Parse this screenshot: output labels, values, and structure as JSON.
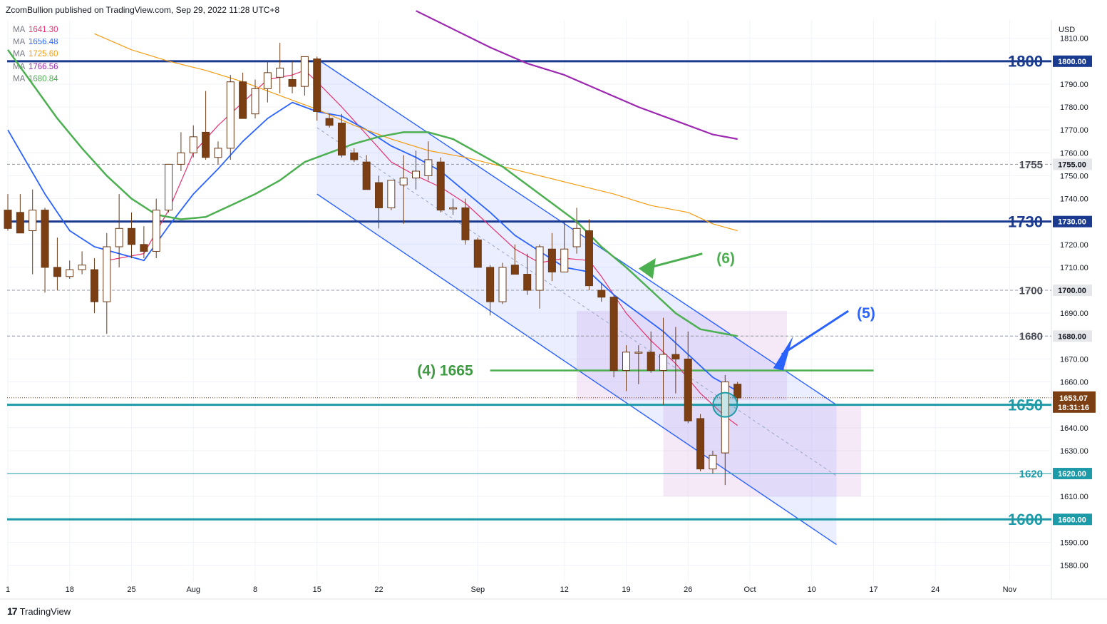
{
  "header": {
    "publisher": "ZcomBullion published on TradingView.com, Sep 29, 2022 11:28 UTC+8"
  },
  "footer": {
    "brand": "TradingView"
  },
  "colors": {
    "bull_body": "#ffffff",
    "bear_body": "#7b3f13",
    "wick": "#6b3a16",
    "ma1": "#e8316e",
    "ma2": "#2962ff",
    "ma3": "#f39c12",
    "ma4": "#9c27b0",
    "ma5": "#4caf50",
    "level_major": "#1a3a8f",
    "level_teal": "#1d9aa8",
    "channel": "#2962ff",
    "box": "#e1bee7"
  },
  "chart_data": {
    "type": "candlestick",
    "title": "",
    "currency_label": "USD",
    "ylim": [
      1573,
      1818
    ],
    "y_ticks": [
      "1580.00",
      "1590.00",
      "1600.00",
      "1610.00",
      "1620.00",
      "1630.00",
      "1640.00",
      "1650.00",
      "1660.00",
      "1670.00",
      "1680.00",
      "1690.00",
      "1700.00",
      "1710.00",
      "1720.00",
      "1730.00",
      "1740.00",
      "1750.00",
      "1760.00",
      "1770.00",
      "1780.00",
      "1790.00",
      "1800.00",
      "1810.00"
    ],
    "x_ticks": [
      {
        "label": "1",
        "t": 0
      },
      {
        "label": "18",
        "t": 5
      },
      {
        "label": "25",
        "t": 10
      },
      {
        "label": "Aug",
        "t": 15
      },
      {
        "label": "8",
        "t": 20
      },
      {
        "label": "15",
        "t": 25
      },
      {
        "label": "22",
        "t": 30
      },
      {
        "label": "Sep",
        "t": 38
      },
      {
        "label": "12",
        "t": 45
      },
      {
        "label": "19",
        "t": 50
      },
      {
        "label": "26",
        "t": 55
      },
      {
        "label": "Oct",
        "t": 60
      },
      {
        "label": "10",
        "t": 65
      },
      {
        "label": "17",
        "t": 70
      },
      {
        "label": "24",
        "t": 75
      },
      {
        "label": "Nov",
        "t": 81
      }
    ],
    "legend": [
      {
        "name": "MA",
        "value": "1641.30",
        "color": "#e8316e"
      },
      {
        "name": "MA",
        "value": "1656.48",
        "color": "#2962ff"
      },
      {
        "name": "MA",
        "value": "1725.60",
        "color": "#f39c12"
      },
      {
        "name": "MA",
        "value": "1766.56",
        "color": "#9c27b0"
      },
      {
        "name": "MA",
        "value": "1680.84",
        "color": "#4caf50"
      }
    ],
    "candles": [
      {
        "t": 0,
        "o": 1735,
        "h": 1742,
        "l": 1726,
        "c": 1727
      },
      {
        "t": 1,
        "o": 1734,
        "h": 1742,
        "l": 1725,
        "c": 1725
      },
      {
        "t": 2,
        "o": 1726,
        "h": 1744,
        "l": 1707,
        "c": 1735
      },
      {
        "t": 3,
        "o": 1735,
        "h": 1736,
        "l": 1699,
        "c": 1710
      },
      {
        "t": 4,
        "o": 1710,
        "h": 1723,
        "l": 1700,
        "c": 1706
      },
      {
        "t": 5,
        "o": 1706,
        "h": 1713,
        "l": 1705,
        "c": 1709
      },
      {
        "t": 6,
        "o": 1709,
        "h": 1717,
        "l": 1707,
        "c": 1711
      },
      {
        "t": 7,
        "o": 1709,
        "h": 1714,
        "l": 1690,
        "c": 1695
      },
      {
        "t": 8,
        "o": 1695,
        "h": 1725,
        "l": 1681,
        "c": 1719
      },
      {
        "t": 9,
        "o": 1719,
        "h": 1742,
        "l": 1710,
        "c": 1727
      },
      {
        "t": 10,
        "o": 1727,
        "h": 1734,
        "l": 1714,
        "c": 1720
      },
      {
        "t": 11,
        "o": 1720,
        "h": 1728,
        "l": 1714,
        "c": 1717
      },
      {
        "t": 12,
        "o": 1717,
        "h": 1740,
        "l": 1714,
        "c": 1735
      },
      {
        "t": 13,
        "o": 1735,
        "h": 1755,
        "l": 1734,
        "c": 1755
      },
      {
        "t": 14,
        "o": 1755,
        "h": 1769,
        "l": 1752,
        "c": 1760
      },
      {
        "t": 15,
        "o": 1760,
        "h": 1772,
        "l": 1758,
        "c": 1767
      },
      {
        "t": 16,
        "o": 1769,
        "h": 1787,
        "l": 1757,
        "c": 1758
      },
      {
        "t": 17,
        "o": 1758,
        "h": 1765,
        "l": 1755,
        "c": 1762
      },
      {
        "t": 18,
        "o": 1762,
        "h": 1794,
        "l": 1757,
        "c": 1791
      },
      {
        "t": 19,
        "o": 1791,
        "h": 1795,
        "l": 1775,
        "c": 1775
      },
      {
        "t": 20,
        "o": 1777,
        "h": 1792,
        "l": 1775,
        "c": 1788
      },
      {
        "t": 21,
        "o": 1788,
        "h": 1800,
        "l": 1782,
        "c": 1795
      },
      {
        "t": 22,
        "o": 1793,
        "h": 1808,
        "l": 1786,
        "c": 1797
      },
      {
        "t": 23,
        "o": 1792,
        "h": 1800,
        "l": 1786,
        "c": 1789
      },
      {
        "t": 24,
        "o": 1789,
        "h": 1802,
        "l": 1785,
        "c": 1802
      },
      {
        "t": 25,
        "o": 1801,
        "h": 1802,
        "l": 1774,
        "c": 1778
      },
      {
        "t": 26,
        "o": 1775,
        "h": 1777,
        "l": 1771,
        "c": 1772
      },
      {
        "t": 27,
        "o": 1773,
        "h": 1777,
        "l": 1758,
        "c": 1759
      },
      {
        "t": 28,
        "o": 1760,
        "h": 1762,
        "l": 1756,
        "c": 1757
      },
      {
        "t": 29,
        "o": 1756,
        "h": 1759,
        "l": 1744,
        "c": 1744
      },
      {
        "t": 30,
        "o": 1747,
        "h": 1750,
        "l": 1727,
        "c": 1736
      },
      {
        "t": 31,
        "o": 1736,
        "h": 1748,
        "l": 1735,
        "c": 1748
      },
      {
        "t": 32,
        "o": 1746,
        "h": 1759,
        "l": 1729,
        "c": 1749
      },
      {
        "t": 33,
        "o": 1749,
        "h": 1761,
        "l": 1744,
        "c": 1752
      },
      {
        "t": 34,
        "o": 1750,
        "h": 1765,
        "l": 1748,
        "c": 1757
      },
      {
        "t": 35,
        "o": 1756,
        "h": 1758,
        "l": 1734,
        "c": 1735
      },
      {
        "t": 36,
        "o": 1736,
        "h": 1740,
        "l": 1733,
        "c": 1736
      },
      {
        "t": 37,
        "o": 1736,
        "h": 1740,
        "l": 1720,
        "c": 1722
      },
      {
        "t": 38,
        "o": 1722,
        "h": 1723,
        "l": 1710,
        "c": 1710
      },
      {
        "t": 39,
        "o": 1710,
        "h": 1711,
        "l": 1689,
        "c": 1695
      },
      {
        "t": 40,
        "o": 1695,
        "h": 1712,
        "l": 1694,
        "c": 1710
      },
      {
        "t": 41,
        "o": 1711,
        "h": 1720,
        "l": 1707,
        "c": 1707
      },
      {
        "t": 42,
        "o": 1707,
        "h": 1716,
        "l": 1698,
        "c": 1700
      },
      {
        "t": 43,
        "o": 1700,
        "h": 1720,
        "l": 1692,
        "c": 1719
      },
      {
        "t": 44,
        "o": 1718,
        "h": 1725,
        "l": 1704,
        "c": 1708
      },
      {
        "t": 45,
        "o": 1708,
        "h": 1730,
        "l": 1708,
        "c": 1718
      },
      {
        "t": 46,
        "o": 1719,
        "h": 1736,
        "l": 1716,
        "c": 1727
      },
      {
        "t": 47,
        "o": 1726,
        "h": 1731,
        "l": 1700,
        "c": 1702
      },
      {
        "t": 48,
        "o": 1700,
        "h": 1703,
        "l": 1695,
        "c": 1697
      },
      {
        "t": 49,
        "o": 1697,
        "h": 1698,
        "l": 1662,
        "c": 1665
      },
      {
        "t": 50,
        "o": 1665,
        "h": 1676,
        "l": 1656,
        "c": 1673
      },
      {
        "t": 51,
        "o": 1673,
        "h": 1676,
        "l": 1659,
        "c": 1673
      },
      {
        "t": 52,
        "o": 1673,
        "h": 1682,
        "l": 1664,
        "c": 1665
      },
      {
        "t": 53,
        "o": 1665,
        "h": 1688,
        "l": 1650,
        "c": 1672
      },
      {
        "t": 54,
        "o": 1672,
        "h": 1684,
        "l": 1655,
        "c": 1670
      },
      {
        "t": 55,
        "o": 1670,
        "h": 1682,
        "l": 1642,
        "c": 1643
      },
      {
        "t": 56,
        "o": 1644,
        "h": 1646,
        "l": 1621,
        "c": 1622
      },
      {
        "t": 57,
        "o": 1622,
        "h": 1630,
        "l": 1620,
        "c": 1628
      },
      {
        "t": 58,
        "o": 1629,
        "h": 1663,
        "l": 1615,
        "c": 1660
      },
      {
        "t": 59,
        "o": 1659,
        "h": 1660,
        "l": 1651,
        "c": 1653
      }
    ],
    "moving_averages": [
      {
        "name": "MA",
        "value": "1641.30",
        "color": "#e8316e",
        "points": [
          [
            8,
            1713
          ],
          [
            11,
            1716
          ],
          [
            13,
            1735
          ],
          [
            15,
            1760
          ],
          [
            17,
            1772
          ],
          [
            19,
            1782
          ],
          [
            21,
            1792
          ],
          [
            23,
            1794
          ],
          [
            24,
            1796
          ],
          [
            25,
            1791
          ],
          [
            27,
            1780
          ],
          [
            29,
            1768
          ],
          [
            31,
            1756
          ],
          [
            33,
            1750
          ],
          [
            35,
            1745
          ],
          [
            37,
            1738
          ],
          [
            39,
            1728
          ],
          [
            41,
            1718
          ],
          [
            43,
            1712
          ],
          [
            45,
            1714
          ],
          [
            47,
            1713
          ],
          [
            48,
            1706
          ],
          [
            50,
            1690
          ],
          [
            52,
            1678
          ],
          [
            54,
            1668
          ],
          [
            56,
            1655
          ],
          [
            58,
            1645
          ],
          [
            59,
            1641
          ]
        ]
      },
      {
        "name": "MA",
        "value": "1656.48",
        "color": "#2962ff",
        "points": [
          [
            0,
            1770
          ],
          [
            3,
            1742
          ],
          [
            5,
            1726
          ],
          [
            7,
            1719
          ],
          [
            9,
            1716
          ],
          [
            11,
            1713
          ],
          [
            13,
            1728
          ],
          [
            15,
            1742
          ],
          [
            17,
            1753
          ],
          [
            19,
            1765
          ],
          [
            21,
            1775
          ],
          [
            23,
            1782
          ],
          [
            25,
            1778
          ],
          [
            27,
            1776
          ],
          [
            29,
            1770
          ],
          [
            31,
            1763
          ],
          [
            33,
            1758
          ],
          [
            35,
            1752
          ],
          [
            37,
            1743
          ],
          [
            39,
            1734
          ],
          [
            41,
            1724
          ],
          [
            43,
            1717
          ],
          [
            45,
            1710
          ],
          [
            47,
            1708
          ],
          [
            49,
            1698
          ],
          [
            51,
            1690
          ],
          [
            53,
            1682
          ],
          [
            55,
            1672
          ],
          [
            57,
            1662
          ],
          [
            59,
            1656
          ]
        ]
      },
      {
        "name": "MA",
        "value": "1725.60",
        "color": "#f39c12",
        "points": [
          [
            7,
            1812
          ],
          [
            10,
            1805
          ],
          [
            13,
            1800
          ],
          [
            16,
            1796
          ],
          [
            19,
            1791
          ],
          [
            22,
            1785
          ],
          [
            25,
            1779
          ],
          [
            28,
            1772
          ],
          [
            31,
            1766
          ],
          [
            34,
            1761
          ],
          [
            37,
            1758
          ],
          [
            40,
            1754
          ],
          [
            43,
            1750
          ],
          [
            46,
            1746
          ],
          [
            49,
            1742
          ],
          [
            52,
            1737
          ],
          [
            55,
            1734
          ],
          [
            57,
            1729
          ],
          [
            59,
            1726
          ]
        ]
      },
      {
        "name": "MA",
        "value": "1766.56",
        "color": "#9c27b0",
        "points": [
          [
            33,
            1822
          ],
          [
            36,
            1814
          ],
          [
            39,
            1806
          ],
          [
            42,
            1799
          ],
          [
            45,
            1794
          ],
          [
            48,
            1787
          ],
          [
            51,
            1780
          ],
          [
            54,
            1774
          ],
          [
            57,
            1768
          ],
          [
            59,
            1766
          ]
        ]
      },
      {
        "name": "MA",
        "value": "1680.84",
        "color": "#4caf50",
        "points": [
          [
            0,
            1805
          ],
          [
            2,
            1790
          ],
          [
            4,
            1775
          ],
          [
            6,
            1762
          ],
          [
            8,
            1750
          ],
          [
            10,
            1740
          ],
          [
            12,
            1733
          ],
          [
            14,
            1731
          ],
          [
            16,
            1732
          ],
          [
            18,
            1737
          ],
          [
            20,
            1742
          ],
          [
            22,
            1748
          ],
          [
            24,
            1756
          ],
          [
            26,
            1760
          ],
          [
            28,
            1764
          ],
          [
            30,
            1767
          ],
          [
            32,
            1769
          ],
          [
            34,
            1769
          ],
          [
            36,
            1766
          ],
          [
            38,
            1760
          ],
          [
            40,
            1754
          ],
          [
            42,
            1746
          ],
          [
            44,
            1738
          ],
          [
            46,
            1730
          ],
          [
            48,
            1719
          ],
          [
            50,
            1710
          ],
          [
            52,
            1700
          ],
          [
            54,
            1690
          ],
          [
            56,
            1683
          ],
          [
            58,
            1681
          ],
          [
            59,
            1680
          ]
        ]
      }
    ],
    "horizontal_levels": [
      {
        "value": 1800,
        "label": "1800",
        "axis_label": "1800.00",
        "style": "major"
      },
      {
        "value": 1730,
        "label": "1730",
        "axis_label": "1730.00",
        "style": "major"
      },
      {
        "value": 1650,
        "label": "1650",
        "axis_label": "1650.00",
        "style": "teal"
      },
      {
        "value": 1600,
        "label": "1600",
        "axis_label": "1600.00",
        "style": "teal"
      },
      {
        "value": 1755,
        "label": "1755",
        "axis_label": "1755.00",
        "style": "dashed"
      },
      {
        "value": 1700,
        "label": "1700",
        "axis_label": "1700.00",
        "style": "dashed"
      },
      {
        "value": 1680,
        "label": "1680",
        "axis_label": "1680.00",
        "style": "dashed"
      },
      {
        "value": 1620,
        "label": "1620",
        "axis_label": "1620.00",
        "style": "thin_teal"
      }
    ],
    "current_price": {
      "value": 1653.07,
      "label": "1653.07",
      "countdown": "18:31:16"
    },
    "channel": {
      "upper": [
        [
          25,
          1801
        ],
        [
          67,
          1650
        ]
      ],
      "lower": [
        [
          25,
          1742
        ],
        [
          67,
          1589
        ]
      ],
      "mid": [
        [
          25,
          1771
        ],
        [
          67,
          1619
        ]
      ]
    },
    "boxes": [
      {
        "t0": 46,
        "t1": 63,
        "y0": 1652,
        "y1": 1691
      },
      {
        "t0": 53,
        "t1": 69,
        "y0": 1610,
        "y1": 1650
      }
    ],
    "support_line": {
      "value": 1665,
      "t0": 39,
      "t1": 70,
      "label": "(4) 1665"
    },
    "annotations": [
      {
        "text": "(6)",
        "t": 58,
        "y": 1714,
        "color": "#4caf50"
      },
      {
        "text": "(5)",
        "t": 69,
        "y": 1690,
        "color": "#2962ff"
      }
    ]
  }
}
